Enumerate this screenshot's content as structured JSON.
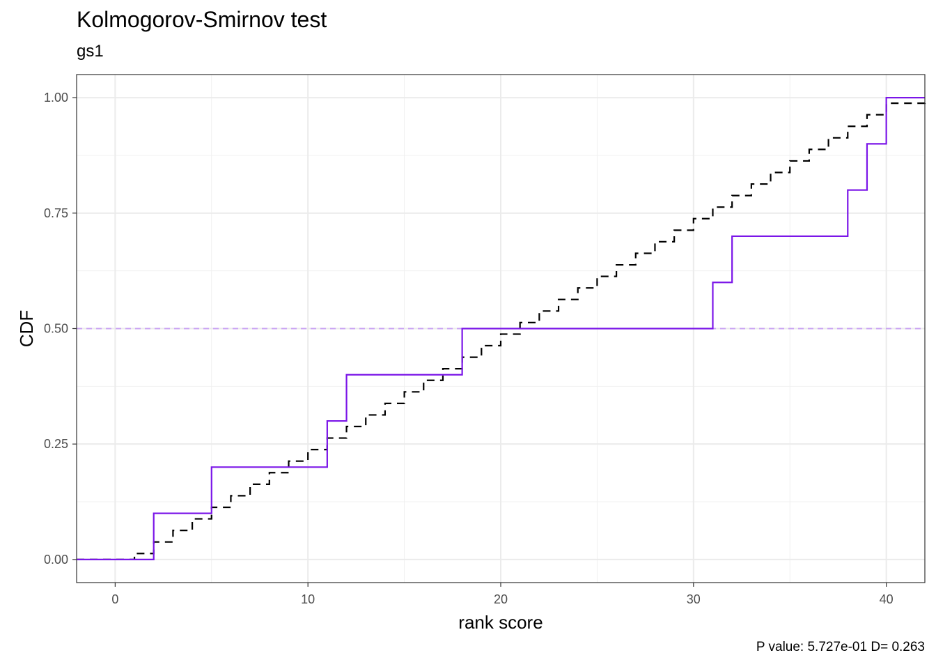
{
  "chart_data": {
    "type": "line",
    "title": "Kolmogorov-Smirnov test",
    "subtitle": "gs1",
    "xlabel": "rank score",
    "ylabel": "CDF",
    "caption": "P value: 5.727e-01 D= 0.263",
    "xlim": [
      -2,
      42
    ],
    "ylim": [
      -0.05,
      1.05
    ],
    "x_ticks": [
      0,
      10,
      20,
      30,
      40
    ],
    "x_tick_labels": [
      "0",
      "10",
      "20",
      "30",
      "40"
    ],
    "y_ticks": [
      0,
      0.25,
      0.5,
      0.75,
      1
    ],
    "y_tick_labels": [
      "0.00",
      "0.25",
      "0.50",
      "0.75",
      "1.00"
    ],
    "grid": true,
    "reference_line": {
      "y": 0.5,
      "color": "#c9a3f2",
      "style": "dashed"
    },
    "series": [
      {
        "style": "dashed-step",
        "color": "#000000",
        "x": [
          -2,
          0,
          1,
          2,
          3,
          4,
          5,
          6,
          7,
          8,
          9,
          10,
          11,
          12,
          13,
          14,
          15,
          16,
          17,
          18,
          19,
          20,
          21,
          22,
          23,
          24,
          25,
          26,
          27,
          28,
          29,
          30,
          31,
          32,
          33,
          34,
          35,
          36,
          37,
          38,
          39,
          40,
          42
        ],
        "y": [
          0,
          0,
          0.013,
          0.038,
          0.063,
          0.088,
          0.113,
          0.138,
          0.163,
          0.188,
          0.213,
          0.238,
          0.263,
          0.288,
          0.313,
          0.338,
          0.363,
          0.388,
          0.413,
          0.438,
          0.463,
          0.488,
          0.513,
          0.538,
          0.563,
          0.588,
          0.613,
          0.638,
          0.663,
          0.688,
          0.713,
          0.738,
          0.763,
          0.788,
          0.813,
          0.838,
          0.863,
          0.888,
          0.913,
          0.938,
          0.963,
          0.988,
          1.0
        ]
      },
      {
        "style": "solid-step",
        "color": "#7b16e8",
        "x": [
          -2,
          2,
          5,
          11,
          12,
          18,
          31,
          32,
          38,
          39,
          40,
          42
        ],
        "y": [
          0,
          0.1,
          0.2,
          0.3,
          0.4,
          0.5,
          0.6,
          0.7,
          0.8,
          0.9,
          1.0,
          1.0
        ]
      }
    ]
  }
}
